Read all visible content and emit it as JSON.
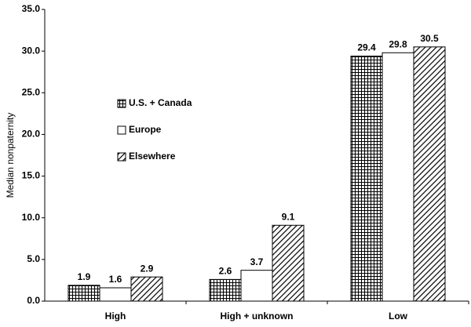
{
  "chart_data": {
    "type": "bar",
    "ylabel": "Median nonpaternity",
    "categories": [
      "High",
      "High + unknown",
      "Low"
    ],
    "series": [
      {
        "name": "U.S. + Canada",
        "color": "#000000",
        "pattern": "grid",
        "values": [
          1.9,
          2.6,
          29.4
        ]
      },
      {
        "name": "Europe",
        "color": "#000000",
        "pattern": "none",
        "values": [
          1.6,
          3.7,
          29.8
        ]
      },
      {
        "name": "Elsewhere",
        "color": "#000000",
        "pattern": "diagonal",
        "values": [
          2.9,
          9.1,
          30.5
        ]
      }
    ],
    "ylim": [
      0,
      35
    ],
    "yticks": [
      {
        "value": 0,
        "label": "0.0"
      },
      {
        "value": 5,
        "label": "5.0"
      },
      {
        "value": 10,
        "label": "10.0"
      },
      {
        "value": 15,
        "label": "15.0"
      },
      {
        "value": 20,
        "label": "20.0"
      },
      {
        "value": 25,
        "label": "25.0"
      },
      {
        "value": 30,
        "label": "30.0"
      },
      {
        "value": 35,
        "label": "35.0"
      }
    ],
    "grid": false,
    "legend": "left"
  }
}
